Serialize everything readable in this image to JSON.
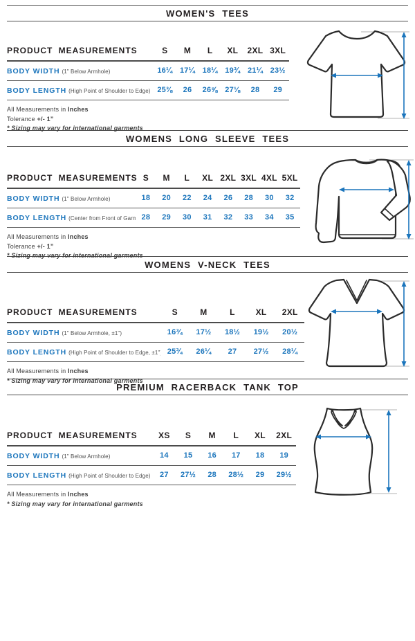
{
  "colors": {
    "accent_blue": "#1b75bc",
    "heading_black": "#231f20",
    "note_gray": "#4f4f4f",
    "rule_gray": "#4b4b4b",
    "guide_gray": "#b3b3b3"
  },
  "sections": [
    {
      "title": "WOMEN'S TEES",
      "garment": "womens-tee",
      "table": {
        "header_label": "PRODUCT MEASUREMENTS",
        "columns": [
          "S",
          "M",
          "L",
          "XL",
          "2XL",
          "3XL"
        ],
        "rows": [
          {
            "label": "BODY WIDTH",
            "sublabel": "(1\" Below Armhole)",
            "values": [
              "16¼",
              "17¼",
              "18¼",
              "19¾",
              "21¼",
              "23½"
            ]
          },
          {
            "label": "BODY LENGTH",
            "sublabel": "(High Point of Shoulder to Edge)",
            "values": [
              "25⅜",
              "26",
              "26⅝",
              "27⅛",
              "28",
              "29"
            ]
          }
        ]
      },
      "notes": [
        {
          "segments": [
            {
              "text": "All Measurements in ",
              "style": "normal"
            },
            {
              "text": "Inches",
              "style": "bold"
            }
          ]
        },
        {
          "segments": [
            {
              "text": "Tolerance ",
              "style": "normal"
            },
            {
              "text": "+/- 1”",
              "style": "bold"
            }
          ]
        },
        {
          "segments": [
            {
              "text": "* Sizing may vary for international garments",
              "style": "bold-italic"
            }
          ]
        }
      ]
    },
    {
      "title": "WOMENS LONG SLEEVE TEES",
      "garment": "womens-long-sleeve-tee",
      "table": {
        "header_label": "PRODUCT MEASUREMENTS",
        "columns": [
          "S",
          "M",
          "L",
          "XL",
          "2XL",
          "3XL",
          "4XL",
          "5XL"
        ],
        "rows": [
          {
            "label": "BODY WIDTH",
            "sublabel": "(1\" Below Armhole)",
            "values": [
              "18",
              "20",
              "22",
              "24",
              "26",
              "28",
              "30",
              "32"
            ]
          },
          {
            "label": "BODY LENGTH",
            "sublabel": "(Center from Front of Garment)",
            "values": [
              "28",
              "29",
              "30",
              "31",
              "32",
              "33",
              "34",
              "35"
            ]
          }
        ]
      },
      "notes": [
        {
          "segments": [
            {
              "text": "All Measurements in ",
              "style": "normal"
            },
            {
              "text": "Inches",
              "style": "bold"
            }
          ]
        },
        {
          "segments": [
            {
              "text": "Tolerance ",
              "style": "normal"
            },
            {
              "text": "+/- 1”",
              "style": "bold"
            }
          ]
        },
        {
          "segments": [
            {
              "text": "* Sizing may vary for international garments",
              "style": "bold-italic"
            }
          ]
        }
      ]
    },
    {
      "title": "WOMENS V-NECK TEES",
      "garment": "womens-vneck-tee",
      "table": {
        "header_label": "PRODUCT MEASUREMENTS",
        "columns": [
          "S",
          "M",
          "L",
          "XL",
          "2XL"
        ],
        "rows": [
          {
            "label": "BODY WIDTH",
            "sublabel": "(1\" Below Armhole, ±1\")",
            "values": [
              "16¾",
              "17½",
              "18½",
              "19½",
              "20½"
            ]
          },
          {
            "label": "BODY LENGTH",
            "sublabel": "(High Point of Shoulder to Edge, ±1\")",
            "values": [
              "25¾",
              "26¼",
              "27",
              "27½",
              "28¼"
            ]
          }
        ]
      },
      "notes": [
        {
          "segments": [
            {
              "text": "All Measurements in ",
              "style": "normal"
            },
            {
              "text": "Inches",
              "style": "bold"
            }
          ]
        },
        {
          "segments": [
            {
              "text": "* Sizing may vary for international garments",
              "style": "bold-italic"
            }
          ]
        }
      ]
    },
    {
      "title": "PREMIUM RACERBACK TANK TOP",
      "garment": "racerback-tank-top",
      "table": {
        "header_label": "PRODUCT MEASUREMENTS",
        "columns": [
          "XS",
          "S",
          "M",
          "L",
          "XL",
          "2XL"
        ],
        "rows": [
          {
            "label": "BODY WIDTH",
            "sublabel": "(1\" Below Armhole)",
            "values": [
              "14",
              "15",
              "16",
              "17",
              "18",
              "19"
            ]
          },
          {
            "label": "BODY LENGTH",
            "sublabel": "(High Point of Shoulder to Edge)",
            "values": [
              "27",
              "27½",
              "28",
              "28½",
              "29",
              "29½"
            ]
          }
        ]
      },
      "notes": [
        {
          "segments": [
            {
              "text": "All Measurements in ",
              "style": "normal"
            },
            {
              "text": "Inches",
              "style": "bold"
            }
          ]
        },
        {
          "segments": [
            {
              "text": "* Sizing may vary for international garments",
              "style": "bold-italic"
            }
          ]
        }
      ]
    }
  ]
}
